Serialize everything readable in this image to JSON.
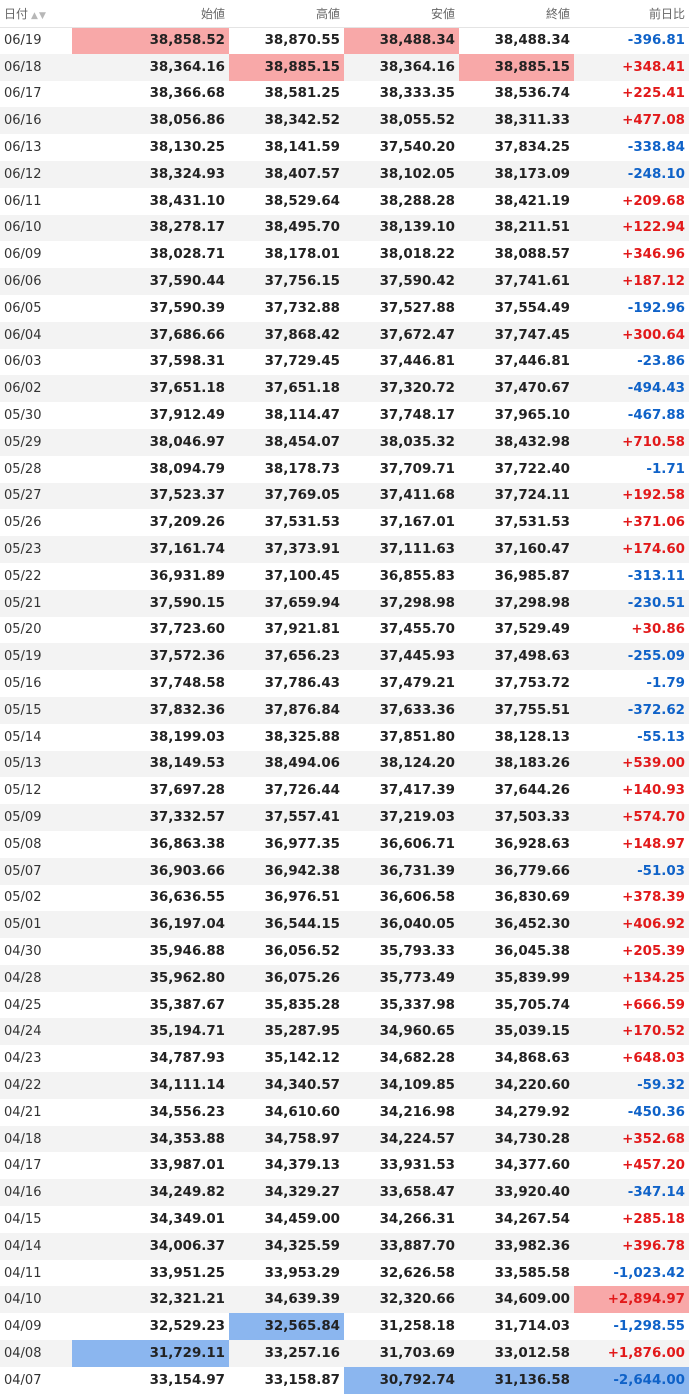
{
  "headers": [
    "日付",
    "始値",
    "高値",
    "安値",
    "終値",
    "前日比"
  ],
  "sort_icons": [
    "sort-asc-icon",
    "sort-desc-icon"
  ],
  "colors": {
    "up": "#e2191a",
    "down": "#0f62c8",
    "highlight_high": "#f8a8a8",
    "highlight_low": "#8bb6ef"
  },
  "rows": [
    {
      "date": "06/19",
      "open": "38,858.52",
      "high": "38,870.55",
      "low": "38,488.34",
      "close": "38,488.34",
      "change": "-396.81",
      "hl": {
        "open": "red",
        "low": "red"
      }
    },
    {
      "date": "06/18",
      "open": "38,364.16",
      "high": "38,885.15",
      "low": "38,364.16",
      "close": "38,885.15",
      "change": "+348.41",
      "hl": {
        "high": "red",
        "close": "red"
      }
    },
    {
      "date": "06/17",
      "open": "38,366.68",
      "high": "38,581.25",
      "low": "38,333.35",
      "close": "38,536.74",
      "change": "+225.41"
    },
    {
      "date": "06/16",
      "open": "38,056.86",
      "high": "38,342.52",
      "low": "38,055.52",
      "close": "38,311.33",
      "change": "+477.08"
    },
    {
      "date": "06/13",
      "open": "38,130.25",
      "high": "38,141.59",
      "low": "37,540.20",
      "close": "37,834.25",
      "change": "-338.84"
    },
    {
      "date": "06/12",
      "open": "38,324.93",
      "high": "38,407.57",
      "low": "38,102.05",
      "close": "38,173.09",
      "change": "-248.10"
    },
    {
      "date": "06/11",
      "open": "38,431.10",
      "high": "38,529.64",
      "low": "38,288.28",
      "close": "38,421.19",
      "change": "+209.68"
    },
    {
      "date": "06/10",
      "open": "38,278.17",
      "high": "38,495.70",
      "low": "38,139.10",
      "close": "38,211.51",
      "change": "+122.94"
    },
    {
      "date": "06/09",
      "open": "38,028.71",
      "high": "38,178.01",
      "low": "38,018.22",
      "close": "38,088.57",
      "change": "+346.96"
    },
    {
      "date": "06/06",
      "open": "37,590.44",
      "high": "37,756.15",
      "low": "37,590.42",
      "close": "37,741.61",
      "change": "+187.12"
    },
    {
      "date": "06/05",
      "open": "37,590.39",
      "high": "37,732.88",
      "low": "37,527.88",
      "close": "37,554.49",
      "change": "-192.96"
    },
    {
      "date": "06/04",
      "open": "37,686.66",
      "high": "37,868.42",
      "low": "37,672.47",
      "close": "37,747.45",
      "change": "+300.64"
    },
    {
      "date": "06/03",
      "open": "37,598.31",
      "high": "37,729.45",
      "low": "37,446.81",
      "close": "37,446.81",
      "change": "-23.86"
    },
    {
      "date": "06/02",
      "open": "37,651.18",
      "high": "37,651.18",
      "low": "37,320.72",
      "close": "37,470.67",
      "change": "-494.43"
    },
    {
      "date": "05/30",
      "open": "37,912.49",
      "high": "38,114.47",
      "low": "37,748.17",
      "close": "37,965.10",
      "change": "-467.88"
    },
    {
      "date": "05/29",
      "open": "38,046.97",
      "high": "38,454.07",
      "low": "38,035.32",
      "close": "38,432.98",
      "change": "+710.58"
    },
    {
      "date": "05/28",
      "open": "38,094.79",
      "high": "38,178.73",
      "low": "37,709.71",
      "close": "37,722.40",
      "change": "-1.71"
    },
    {
      "date": "05/27",
      "open": "37,523.37",
      "high": "37,769.05",
      "low": "37,411.68",
      "close": "37,724.11",
      "change": "+192.58"
    },
    {
      "date": "05/26",
      "open": "37,209.26",
      "high": "37,531.53",
      "low": "37,167.01",
      "close": "37,531.53",
      "change": "+371.06"
    },
    {
      "date": "05/23",
      "open": "37,161.74",
      "high": "37,373.91",
      "low": "37,111.63",
      "close": "37,160.47",
      "change": "+174.60"
    },
    {
      "date": "05/22",
      "open": "36,931.89",
      "high": "37,100.45",
      "low": "36,855.83",
      "close": "36,985.87",
      "change": "-313.11"
    },
    {
      "date": "05/21",
      "open": "37,590.15",
      "high": "37,659.94",
      "low": "37,298.98",
      "close": "37,298.98",
      "change": "-230.51"
    },
    {
      "date": "05/20",
      "open": "37,723.60",
      "high": "37,921.81",
      "low": "37,455.70",
      "close": "37,529.49",
      "change": "+30.86"
    },
    {
      "date": "05/19",
      "open": "37,572.36",
      "high": "37,656.23",
      "low": "37,445.93",
      "close": "37,498.63",
      "change": "-255.09"
    },
    {
      "date": "05/16",
      "open": "37,748.58",
      "high": "37,786.43",
      "low": "37,479.21",
      "close": "37,753.72",
      "change": "-1.79"
    },
    {
      "date": "05/15",
      "open": "37,832.36",
      "high": "37,876.84",
      "low": "37,633.36",
      "close": "37,755.51",
      "change": "-372.62"
    },
    {
      "date": "05/14",
      "open": "38,199.03",
      "high": "38,325.88",
      "low": "37,851.80",
      "close": "38,128.13",
      "change": "-55.13"
    },
    {
      "date": "05/13",
      "open": "38,149.53",
      "high": "38,494.06",
      "low": "38,124.20",
      "close": "38,183.26",
      "change": "+539.00"
    },
    {
      "date": "05/12",
      "open": "37,697.28",
      "high": "37,726.44",
      "low": "37,417.39",
      "close": "37,644.26",
      "change": "+140.93"
    },
    {
      "date": "05/09",
      "open": "37,332.57",
      "high": "37,557.41",
      "low": "37,219.03",
      "close": "37,503.33",
      "change": "+574.70"
    },
    {
      "date": "05/08",
      "open": "36,863.38",
      "high": "36,977.35",
      "low": "36,606.71",
      "close": "36,928.63",
      "change": "+148.97"
    },
    {
      "date": "05/07",
      "open": "36,903.66",
      "high": "36,942.38",
      "low": "36,731.39",
      "close": "36,779.66",
      "change": "-51.03"
    },
    {
      "date": "05/02",
      "open": "36,636.55",
      "high": "36,976.51",
      "low": "36,606.58",
      "close": "36,830.69",
      "change": "+378.39"
    },
    {
      "date": "05/01",
      "open": "36,197.04",
      "high": "36,544.15",
      "low": "36,040.05",
      "close": "36,452.30",
      "change": "+406.92"
    },
    {
      "date": "04/30",
      "open": "35,946.88",
      "high": "36,056.52",
      "low": "35,793.33",
      "close": "36,045.38",
      "change": "+205.39"
    },
    {
      "date": "04/28",
      "open": "35,962.80",
      "high": "36,075.26",
      "low": "35,773.49",
      "close": "35,839.99",
      "change": "+134.25"
    },
    {
      "date": "04/25",
      "open": "35,387.67",
      "high": "35,835.28",
      "low": "35,337.98",
      "close": "35,705.74",
      "change": "+666.59"
    },
    {
      "date": "04/24",
      "open": "35,194.71",
      "high": "35,287.95",
      "low": "34,960.65",
      "close": "35,039.15",
      "change": "+170.52"
    },
    {
      "date": "04/23",
      "open": "34,787.93",
      "high": "35,142.12",
      "low": "34,682.28",
      "close": "34,868.63",
      "change": "+648.03"
    },
    {
      "date": "04/22",
      "open": "34,111.14",
      "high": "34,340.57",
      "low": "34,109.85",
      "close": "34,220.60",
      "change": "-59.32"
    },
    {
      "date": "04/21",
      "open": "34,556.23",
      "high": "34,610.60",
      "low": "34,216.98",
      "close": "34,279.92",
      "change": "-450.36"
    },
    {
      "date": "04/18",
      "open": "34,353.88",
      "high": "34,758.97",
      "low": "34,224.57",
      "close": "34,730.28",
      "change": "+352.68"
    },
    {
      "date": "04/17",
      "open": "33,987.01",
      "high": "34,379.13",
      "low": "33,931.53",
      "close": "34,377.60",
      "change": "+457.20"
    },
    {
      "date": "04/16",
      "open": "34,249.82",
      "high": "34,329.27",
      "low": "33,658.47",
      "close": "33,920.40",
      "change": "-347.14"
    },
    {
      "date": "04/15",
      "open": "34,349.01",
      "high": "34,459.00",
      "low": "34,266.31",
      "close": "34,267.54",
      "change": "+285.18"
    },
    {
      "date": "04/14",
      "open": "34,006.37",
      "high": "34,325.59",
      "low": "33,887.70",
      "close": "33,982.36",
      "change": "+396.78"
    },
    {
      "date": "04/11",
      "open": "33,951.25",
      "high": "33,953.29",
      "low": "32,626.58",
      "close": "33,585.58",
      "change": "-1,023.42"
    },
    {
      "date": "04/10",
      "open": "32,321.21",
      "high": "34,639.39",
      "low": "32,320.66",
      "close": "34,609.00",
      "change": "+2,894.97",
      "hl": {
        "change": "red"
      }
    },
    {
      "date": "04/09",
      "open": "32,529.23",
      "high": "32,565.84",
      "low": "31,258.18",
      "close": "31,714.03",
      "change": "-1,298.55",
      "hl": {
        "high": "blue"
      }
    },
    {
      "date": "04/08",
      "open": "31,729.11",
      "high": "33,257.16",
      "low": "31,703.69",
      "close": "33,012.58",
      "change": "+1,876.00",
      "hl": {
        "open": "blue"
      }
    },
    {
      "date": "04/07",
      "open": "33,154.97",
      "high": "33,158.87",
      "low": "30,792.74",
      "close": "31,136.58",
      "change": "-2,644.00",
      "hl": {
        "low": "blue",
        "close": "blue",
        "change": "blue"
      }
    }
  ]
}
